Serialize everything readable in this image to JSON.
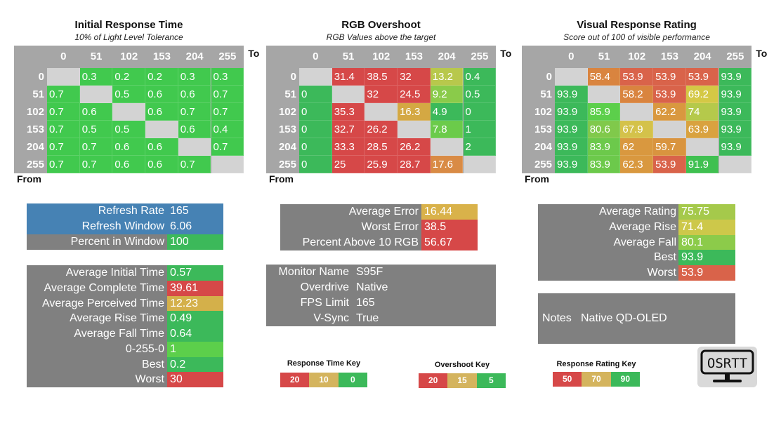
{
  "axis_labels": {
    "to": "To",
    "from": "From"
  },
  "levels": [
    "0",
    "51",
    "102",
    "153",
    "204",
    "255"
  ],
  "grids": [
    {
      "title": "Initial Response Time",
      "subtitle": "10% of Light Level Tolerance",
      "rows": [
        [
          null,
          [
            "0.3",
            "#41c94e"
          ],
          [
            "0.2",
            "#41c94e"
          ],
          [
            "0.2",
            "#41c94e"
          ],
          [
            "0.3",
            "#41c94e"
          ],
          [
            "0.3",
            "#41c94e"
          ]
        ],
        [
          [
            "0.7",
            "#41c94e"
          ],
          null,
          [
            "0.5",
            "#41c94e"
          ],
          [
            "0.6",
            "#41c94e"
          ],
          [
            "0.6",
            "#41c94e"
          ],
          [
            "0.7",
            "#41c94e"
          ]
        ],
        [
          [
            "0.7",
            "#41c94e"
          ],
          [
            "0.6",
            "#41c94e"
          ],
          null,
          [
            "0.6",
            "#41c94e"
          ],
          [
            "0.7",
            "#41c94e"
          ],
          [
            "0.7",
            "#41c94e"
          ]
        ],
        [
          [
            "0.7",
            "#41c94e"
          ],
          [
            "0.5",
            "#41c94e"
          ],
          [
            "0.5",
            "#41c94e"
          ],
          null,
          [
            "0.6",
            "#41c94e"
          ],
          [
            "0.4",
            "#41c94e"
          ]
        ],
        [
          [
            "0.7",
            "#41c94e"
          ],
          [
            "0.7",
            "#41c94e"
          ],
          [
            "0.6",
            "#41c94e"
          ],
          [
            "0.6",
            "#41c94e"
          ],
          null,
          [
            "0.7",
            "#41c94e"
          ]
        ],
        [
          [
            "0.7",
            "#41c94e"
          ],
          [
            "0.7",
            "#41c94e"
          ],
          [
            "0.6",
            "#41c94e"
          ],
          [
            "0.6",
            "#41c94e"
          ],
          [
            "0.7",
            "#41c94e"
          ],
          null
        ]
      ]
    },
    {
      "title": "RGB Overshoot",
      "subtitle": "RGB Values above the target",
      "rows": [
        [
          null,
          [
            "31.4",
            "#d64848"
          ],
          [
            "38.5",
            "#d64848"
          ],
          [
            "32",
            "#d64848"
          ],
          [
            "13.2",
            "#b8c84c"
          ],
          [
            "0.4",
            "#3cb95a"
          ]
        ],
        [
          [
            "0",
            "#3cb95a"
          ],
          null,
          [
            "32",
            "#d64848"
          ],
          [
            "24.5",
            "#d64848"
          ],
          [
            "9.2",
            "#8acb4a"
          ],
          [
            "0.5",
            "#3cb95a"
          ]
        ],
        [
          [
            "0",
            "#3cb95a"
          ],
          [
            "35.3",
            "#d64848"
          ],
          null,
          [
            "16.3",
            "#d4a843"
          ],
          [
            "4.9",
            "#3cb95a"
          ],
          [
            "0",
            "#3cb95a"
          ]
        ],
        [
          [
            "0",
            "#3cb95a"
          ],
          [
            "32.7",
            "#d64848"
          ],
          [
            "26.2",
            "#d64848"
          ],
          null,
          [
            "7.8",
            "#6bcb4a"
          ],
          [
            "1",
            "#3cb95a"
          ]
        ],
        [
          [
            "0",
            "#3cb95a"
          ],
          [
            "33.3",
            "#d64848"
          ],
          [
            "28.5",
            "#d64848"
          ],
          [
            "26.2",
            "#d64848"
          ],
          null,
          [
            "2",
            "#3cb95a"
          ]
        ],
        [
          [
            "0",
            "#3cb95a"
          ],
          [
            "25",
            "#d64848"
          ],
          [
            "25.9",
            "#d64848"
          ],
          [
            "28.7",
            "#d64848"
          ],
          [
            "17.6",
            "#d98b45"
          ],
          null
        ]
      ]
    },
    {
      "title": "Visual Response Rating",
      "subtitle": "Score out of 100 of visible performance",
      "rows": [
        [
          null,
          [
            "58.4",
            "#d9843f"
          ],
          [
            "53.9",
            "#d9634a"
          ],
          [
            "53.9",
            "#d9634a"
          ],
          [
            "53.9",
            "#d9634a"
          ],
          [
            "93.9",
            "#3cb95a"
          ]
        ],
        [
          [
            "93.9",
            "#3cb95a"
          ],
          null,
          [
            "58.2",
            "#d9843f"
          ],
          [
            "53.9",
            "#d9634a"
          ],
          [
            "69.2",
            "#d4c845"
          ],
          [
            "93.9",
            "#3cb95a"
          ]
        ],
        [
          [
            "93.9",
            "#3cb95a"
          ],
          [
            "85.9",
            "#5ccf4b"
          ],
          null,
          [
            "62.2",
            "#d9983f"
          ],
          [
            "74",
            "#b5c94b"
          ],
          [
            "93.9",
            "#3cb95a"
          ]
        ],
        [
          [
            "93.9",
            "#3cb95a"
          ],
          [
            "80.6",
            "#80c94b"
          ],
          [
            "67.9",
            "#d4c24a"
          ],
          null,
          [
            "63.9",
            "#d9a23f"
          ],
          [
            "93.9",
            "#3cb95a"
          ]
        ],
        [
          [
            "93.9",
            "#3cb95a"
          ],
          [
            "83.9",
            "#6cc94b"
          ],
          [
            "62",
            "#d9983f"
          ],
          [
            "59.7",
            "#d9943f"
          ],
          null,
          [
            "93.9",
            "#3cb95a"
          ]
        ],
        [
          [
            "93.9",
            "#3cb95a"
          ],
          [
            "83.9",
            "#6cc94b"
          ],
          [
            "62.3",
            "#d9983f"
          ],
          [
            "53.9",
            "#d9634a"
          ],
          [
            "91.9",
            "#3fc050"
          ],
          null
        ]
      ]
    }
  ],
  "refresh_panel": [
    {
      "label": "Refresh Rate",
      "value": "165",
      "label_bg": "#4682b4",
      "value_bg": "#4682b4"
    },
    {
      "label": "Refresh Window",
      "value": "6.06",
      "label_bg": "#4682b4",
      "value_bg": "#4682b4"
    },
    {
      "label": "Percent in Window",
      "value": "100",
      "label_bg": "#808080",
      "value_bg": "#3cb95a"
    }
  ],
  "time_panel": [
    {
      "label": "Average Initial Time",
      "value": "0.57",
      "value_bg": "#3cb95a"
    },
    {
      "label": "Average Complete Time",
      "value": "39.61",
      "value_bg": "#d64848"
    },
    {
      "label": "Average Perceived Time",
      "value": "12.23",
      "value_bg": "#d4b04a"
    },
    {
      "label": "Average Rise Time",
      "value": "0.49",
      "value_bg": "#3cb95a"
    },
    {
      "label": "Average Fall Time",
      "value": "0.64",
      "value_bg": "#3cb95a"
    },
    {
      "label": "0-255-0",
      "value": "1",
      "value_bg": "#5ccf4b"
    },
    {
      "label": "Best",
      "value": "0.2",
      "value_bg": "#3cb95a"
    },
    {
      "label": "Worst",
      "value": "30",
      "value_bg": "#d64848"
    }
  ],
  "error_panel": [
    {
      "label": "Average Error",
      "value": "16.44",
      "value_bg": "#d9b24a"
    },
    {
      "label": "Worst Error",
      "value": "38.5",
      "value_bg": "#d64848"
    },
    {
      "label": "Percent Above 10 RGB",
      "value": "56.67",
      "value_bg": "#d64848"
    }
  ],
  "monitor_panel": [
    {
      "label": "Monitor Name",
      "value": "S95F"
    },
    {
      "label": "Overdrive",
      "value": "Native"
    },
    {
      "label": "FPS Limit",
      "value": "165"
    },
    {
      "label": "V-Sync",
      "value": "True"
    }
  ],
  "rating_panel": [
    {
      "label": "Average Rating",
      "value": "75.75",
      "value_bg": "#a5c94b"
    },
    {
      "label": "Average Rise",
      "value": "71.4",
      "value_bg": "#cdc84a"
    },
    {
      "label": "Average Fall",
      "value": "80.1",
      "value_bg": "#8ccb4a"
    },
    {
      "label": "Best",
      "value": "93.9",
      "value_bg": "#3cb95a"
    },
    {
      "label": "Worst",
      "value": "53.9",
      "value_bg": "#d9634a"
    }
  ],
  "notes": {
    "label": "Notes",
    "value": "Native QD-OLED"
  },
  "keys": [
    {
      "title": "Response Time Key",
      "values": [
        "20",
        "10",
        "0"
      ]
    },
    {
      "title": "Overshoot Key",
      "values": [
        "20",
        "15",
        "5"
      ]
    },
    {
      "title": "Response Rating Key",
      "values": [
        "50",
        "70",
        "90"
      ]
    }
  ],
  "key_colors": [
    "#d64848",
    "#d4b45e",
    "#3cb95a"
  ],
  "colors": {
    "panel_gray": "#808080",
    "header_gray": "#a6a6a6",
    "diagonal": "#d3d3d3"
  },
  "logo": {
    "text": "OSRTT",
    "icon": "monitor-logo"
  }
}
